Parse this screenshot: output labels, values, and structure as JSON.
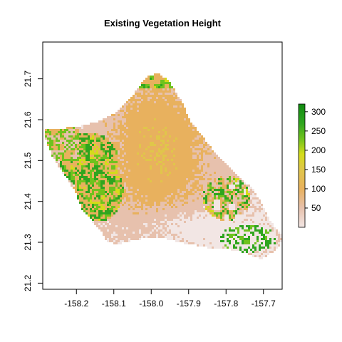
{
  "chart_data": {
    "type": "raster",
    "title": "Existing Vegetation Height",
    "xlabel": "",
    "ylabel": "",
    "xlim": [
      -158.29,
      -157.65
    ],
    "ylim": [
      21.185,
      21.79
    ],
    "x_ticks": [
      -158.2,
      -158.1,
      -158.0,
      -157.9,
      -157.8,
      -157.7
    ],
    "x_tick_labels": [
      "-158.2",
      "-158.1",
      "-158.0",
      "-157.9",
      "-157.8",
      "-157.7"
    ],
    "y_ticks": [
      21.2,
      21.3,
      21.4,
      21.5,
      21.6,
      21.7
    ],
    "y_tick_labels": [
      "21.2",
      "21.3",
      "21.4",
      "21.5",
      "21.6",
      "21.7"
    ],
    "legend": {
      "placement": "right",
      "range": [
        0,
        320
      ],
      "ticks": [
        50,
        100,
        150,
        200,
        250,
        300
      ],
      "tick_labels": [
        "50",
        "100",
        "150",
        "200",
        "250",
        "300"
      ],
      "color_stops": [
        {
          "value": 0,
          "color": "#f2e6e4"
        },
        {
          "value": 50,
          "color": "#e7c1ad"
        },
        {
          "value": 100,
          "color": "#e8b15e"
        },
        {
          "value": 150,
          "color": "#e0c64a"
        },
        {
          "value": 190,
          "color": "#d4dc1a"
        },
        {
          "value": 230,
          "color": "#6fc21e"
        },
        {
          "value": 270,
          "color": "#2fa51f"
        },
        {
          "value": 320,
          "color": "#118a10"
        }
      ]
    }
  }
}
